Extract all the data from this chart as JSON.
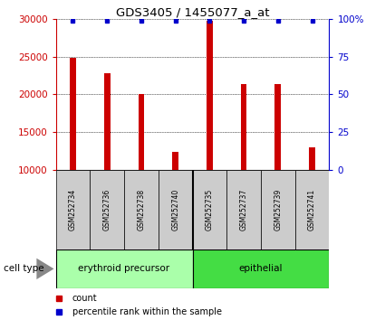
{
  "title": "GDS3405 / 1455077_a_at",
  "samples": [
    "GSM252734",
    "GSM252736",
    "GSM252738",
    "GSM252740",
    "GSM252735",
    "GSM252737",
    "GSM252739",
    "GSM252741"
  ],
  "counts": [
    24800,
    22800,
    20000,
    12400,
    29800,
    21400,
    21400,
    13000
  ],
  "percentile_ranks": [
    99,
    99,
    99,
    99,
    99,
    99,
    99,
    99
  ],
  "ylim_left": [
    10000,
    30000
  ],
  "ylim_right": [
    0,
    100
  ],
  "yticks_left": [
    10000,
    15000,
    20000,
    25000,
    30000
  ],
  "yticks_right": [
    0,
    25,
    50,
    75,
    100
  ],
  "bar_color": "#cc0000",
  "marker_color": "#0000cc",
  "cell_types": [
    "erythroid precursor",
    "epithelial"
  ],
  "cell_type_n": [
    4,
    4
  ],
  "cell_type_colors": [
    "#aaffaa",
    "#44dd44"
  ],
  "sample_bg_color": "#cccccc",
  "bar_width": 0.18,
  "legend_items": [
    {
      "label": "count",
      "color": "#cc0000"
    },
    {
      "label": "percentile rank within the sample",
      "color": "#0000cc"
    }
  ]
}
